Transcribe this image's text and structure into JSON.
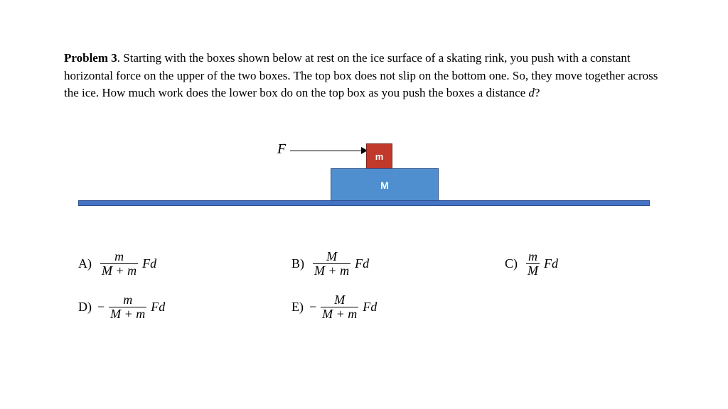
{
  "problem": {
    "label": "Problem 3",
    "text_before_d": ". Starting with the boxes shown below at rest on the ice surface of a skating rink, you push with a constant horizontal force on the upper of the two boxes. The top box does not slip on the bottom one. So, they move together across the ice. How much work does the lower box do on the top box as you push the boxes a distance ",
    "distance_var": "d",
    "text_after_d": "?"
  },
  "diagram": {
    "force_label": "F",
    "top_box_label": "m",
    "bottom_box_label": "M",
    "colors": {
      "ground": "#4472c4",
      "big_box": "#4f8fcf",
      "small_box": "#c0392b",
      "box_text": "#ffffff"
    }
  },
  "options": {
    "A": {
      "letter": "A)",
      "sign": "",
      "num": "m",
      "den": "M + m",
      "tail": "Fd"
    },
    "B": {
      "letter": "B)",
      "sign": "",
      "num": "M",
      "den": "M + m",
      "tail": "Fd"
    },
    "C": {
      "letter": "C)",
      "sign": "",
      "num": "m",
      "den": "M",
      "tail": "Fd"
    },
    "D": {
      "letter": "D)",
      "sign": "−",
      "num": "m",
      "den": "M + m",
      "tail": "Fd"
    },
    "E": {
      "letter": "E)",
      "sign": "−",
      "num": "M",
      "den": "M + m",
      "tail": "Fd"
    }
  }
}
